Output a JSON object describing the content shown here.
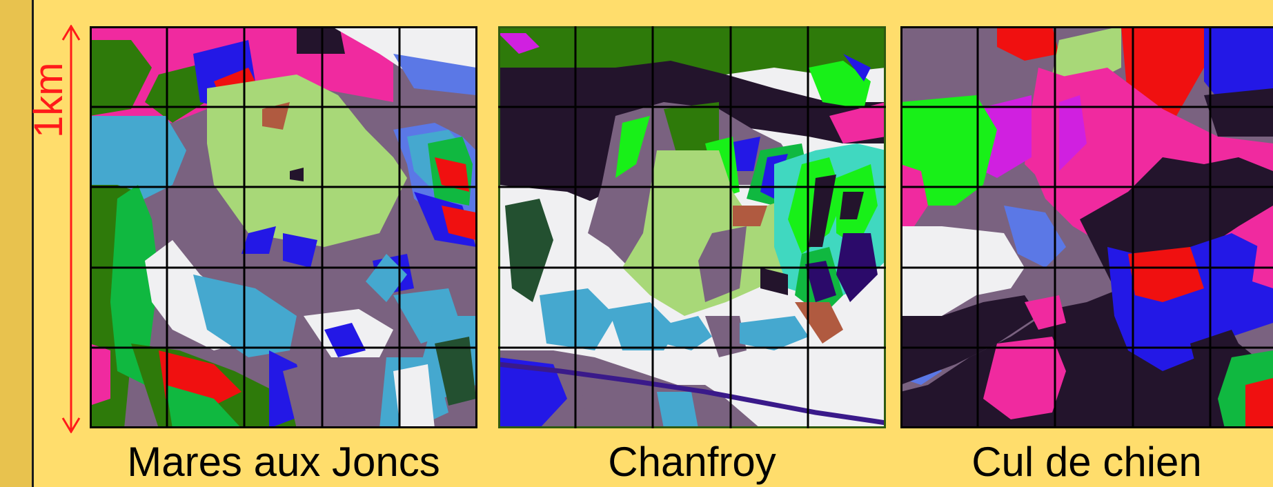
{
  "scale": {
    "label": "1km",
    "color": "#ff1a1a"
  },
  "background": "#FFDD6C",
  "maps": [
    {
      "id": "mares",
      "caption": "Mares aux Joncs"
    },
    {
      "id": "chanfroy",
      "caption": "Chanfroy"
    },
    {
      "id": "cul",
      "caption": "Cul de chien"
    }
  ],
  "palette": {
    "magenta": "#F02A9F",
    "dark_green": "#2E7A0A",
    "green": "#10B840",
    "light_green": "#A8D878",
    "purple_gray": "#7A6280",
    "sky_blue": "#45A8CF",
    "blue": "#2318E6",
    "red": "#F01010",
    "white": "#F0F0F2",
    "periwinkle": "#5B78E6",
    "black_purple": "#231428",
    "bright_green": "#18F018",
    "turquoise": "#40D8C0",
    "forest": "#235030",
    "violet": "#D020E0",
    "brown": "#B05A40"
  }
}
